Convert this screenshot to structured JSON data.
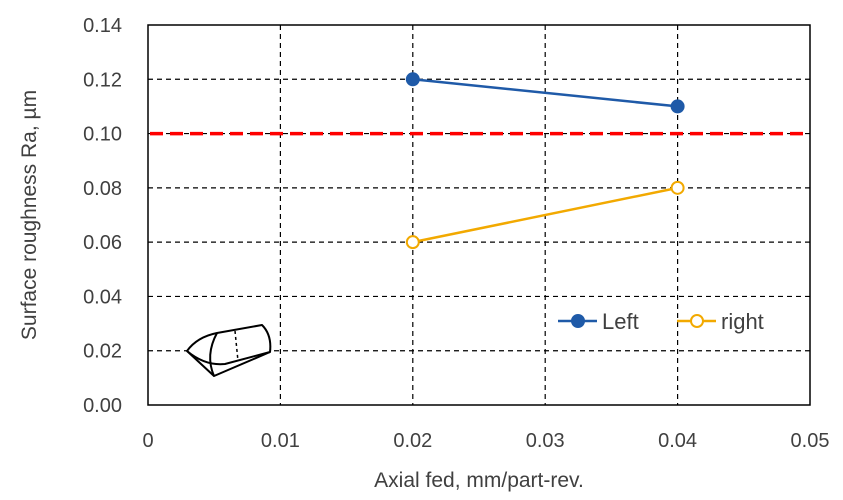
{
  "chart_data": {
    "type": "line",
    "title": "",
    "xlabel": "Axial fed, mm/part-rev.",
    "ylabel": "Surface roughness Ra, µm",
    "xlim": [
      0,
      0.05
    ],
    "ylim": [
      0,
      0.14
    ],
    "x_ticks": [
      0,
      0.01,
      0.02,
      0.03,
      0.04,
      0.05
    ],
    "x_tick_labels": [
      "0",
      "0.01",
      "0.02",
      "0.03",
      "0.04",
      "0.05"
    ],
    "y_ticks": [
      0,
      0.02,
      0.04,
      0.06,
      0.08,
      0.1,
      0.12,
      0.14
    ],
    "y_tick_labels": [
      "0.00",
      "0.02",
      "0.04",
      "0.06",
      "0.08",
      "0.10",
      "0.12",
      "0.14"
    ],
    "grid": "dashed",
    "legend_position": "bottom-right",
    "series": [
      {
        "name": "Left",
        "x": [
          0.02,
          0.04
        ],
        "y": [
          0.12,
          0.11
        ],
        "color": "#1F5AA8",
        "marker": "filled-circle"
      },
      {
        "name": "right",
        "x": [
          0.02,
          0.04
        ],
        "y": [
          0.06,
          0.08
        ],
        "color": "#F2A900",
        "marker": "open-circle"
      }
    ],
    "reference_line": {
      "y": 0.1,
      "color": "#FF0000",
      "style": "dashed"
    },
    "inset_icon": "tool-insert-icon"
  }
}
